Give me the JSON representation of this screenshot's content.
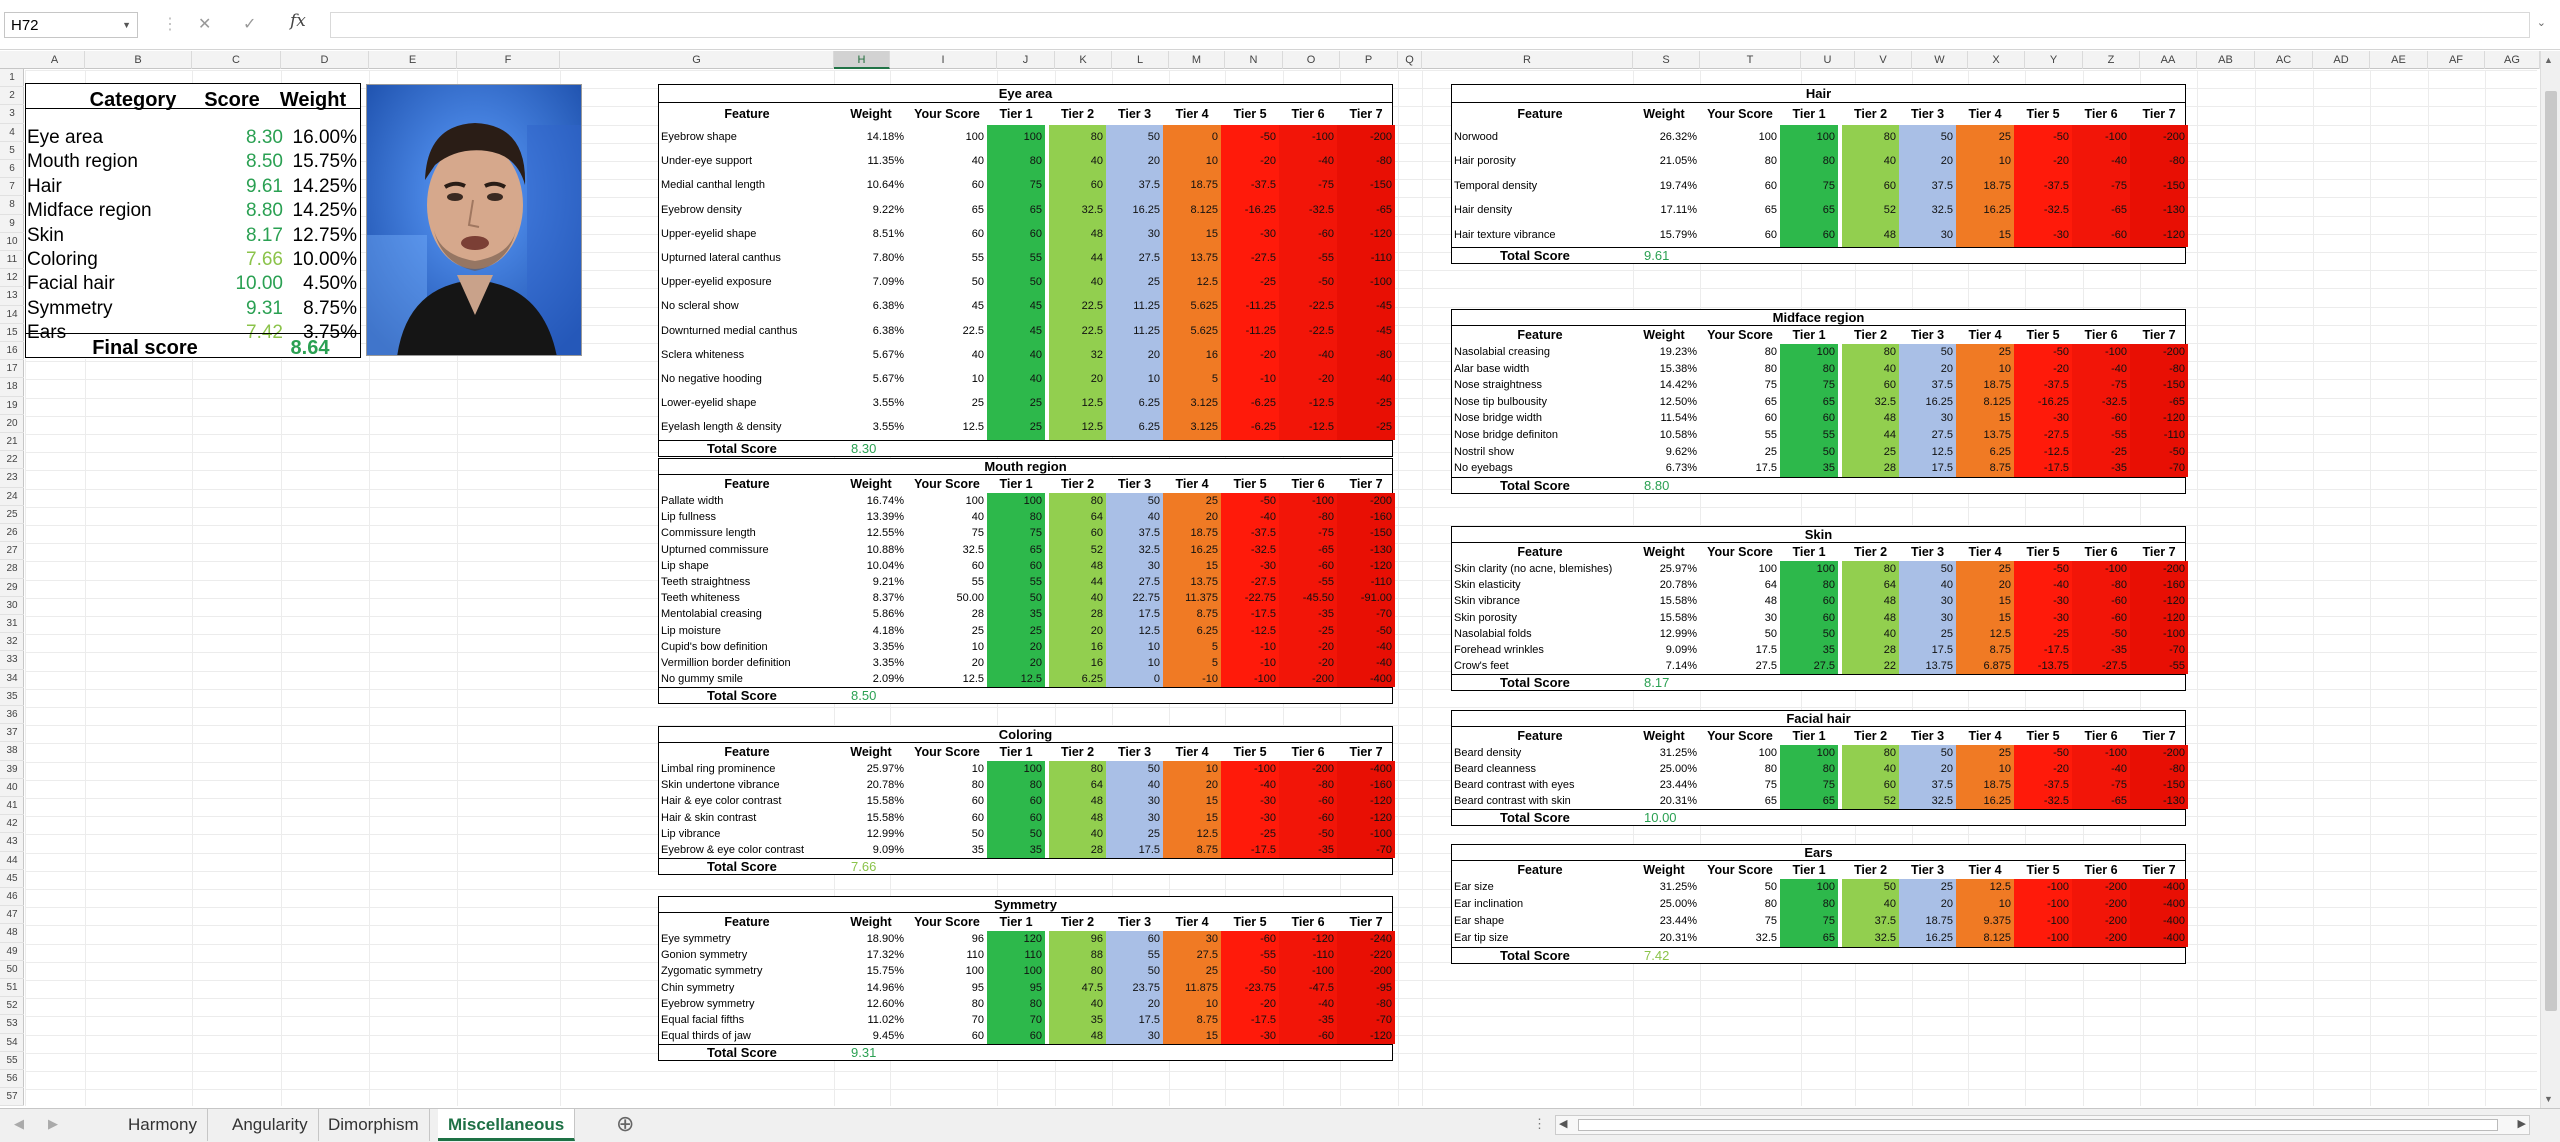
{
  "formula_bar": {
    "name_box": "H72",
    "cancel_icon": "✕",
    "enter_icon": "✓",
    "fx": "fx",
    "value": ""
  },
  "columns": [
    "A",
    "B",
    "C",
    "D",
    "E",
    "F",
    "G",
    "H",
    "I",
    "J",
    "K",
    "L",
    "M",
    "N",
    "O",
    "P",
    "Q",
    "R",
    "S",
    "T",
    "U",
    "V",
    "W",
    "X",
    "Y",
    "Z",
    "AA",
    "AB",
    "AC",
    "AD",
    "AE",
    "AF",
    "AG"
  ],
  "row_numbers": [
    "1",
    "2",
    "3",
    "4",
    "5",
    "6",
    "7",
    "8",
    "9",
    "10",
    "11",
    "12",
    "13",
    "14",
    "15",
    "16",
    "17",
    "18",
    "19",
    "20",
    "21",
    "22",
    "23",
    "24",
    "25",
    "26",
    "27",
    "28",
    "29",
    "30",
    "31",
    "32",
    "33",
    "34",
    "35",
    "36",
    "37",
    "38",
    "39",
    "40",
    "41",
    "42",
    "43",
    "44",
    "45",
    "46",
    "47",
    "48",
    "49",
    "50",
    "51",
    "52",
    "53",
    "54",
    "55",
    "56",
    "57"
  ],
  "summary": {
    "headers": [
      "Category",
      "Score",
      "Weight"
    ],
    "rows": [
      {
        "category": "Eye area",
        "score": "8.30",
        "weight": "16.00%"
      },
      {
        "category": "Mouth region",
        "score": "8.50",
        "weight": "15.75%"
      },
      {
        "category": "Hair",
        "score": "9.61",
        "weight": "14.25%"
      },
      {
        "category": "Midface region",
        "score": "8.80",
        "weight": "14.25%"
      },
      {
        "category": "Skin",
        "score": "8.17",
        "weight": "12.75%"
      },
      {
        "category": "Coloring",
        "score": "7.66",
        "weight": "10.00%"
      },
      {
        "category": "Facial hair",
        "score": "10.00",
        "weight": "4.50%"
      },
      {
        "category": "Symmetry",
        "score": "9.31",
        "weight": "8.75%"
      },
      {
        "category": "Ears",
        "score": "7.42",
        "weight": "3.75%"
      }
    ],
    "final_label": "Final score",
    "final_value": "8.64"
  },
  "table_headers": [
    "Feature",
    "Weight",
    "Your Score",
    "Tier 1",
    "Tier 2",
    "Tier 3",
    "Tier 4",
    "Tier 5",
    "Tier 6",
    "Tier 7"
  ],
  "total_label": "Total Score",
  "tier_colors": [
    "#2db84b",
    "#92cf4f",
    "#a9bfe6",
    "#f07a24",
    "#ff1a0a",
    "#f21508",
    "#e80f04"
  ],
  "tables": [
    {
      "title": "Eye area",
      "total": "8.30",
      "rows": [
        [
          "Eyebrow shape",
          "14.18%",
          "100",
          "100",
          "80",
          "50",
          "0",
          "-50",
          "-100",
          "-200"
        ],
        [
          "Under-eye support",
          "11.35%",
          "40",
          "80",
          "40",
          "20",
          "10",
          "-20",
          "-40",
          "-80"
        ],
        [
          "Medial canthal length",
          "10.64%",
          "60",
          "75",
          "60",
          "37.5",
          "18.75",
          "-37.5",
          "-75",
          "-150"
        ],
        [
          "Eyebrow density",
          "9.22%",
          "65",
          "65",
          "32.5",
          "16.25",
          "8.125",
          "-16.25",
          "-32.5",
          "-65"
        ],
        [
          "Upper-eyelid shape",
          "8.51%",
          "60",
          "60",
          "48",
          "30",
          "15",
          "-30",
          "-60",
          "-120"
        ],
        [
          "Upturned lateral canthus",
          "7.80%",
          "55",
          "55",
          "44",
          "27.5",
          "13.75",
          "-27.5",
          "-55",
          "-110"
        ],
        [
          "Upper-eyelid exposure",
          "7.09%",
          "50",
          "50",
          "40",
          "25",
          "12.5",
          "-25",
          "-50",
          "-100"
        ],
        [
          "No scleral show",
          "6.38%",
          "45",
          "45",
          "22.5",
          "11.25",
          "5.625",
          "-11.25",
          "-22.5",
          "-45"
        ],
        [
          "Downturned medial canthus",
          "6.38%",
          "22.5",
          "45",
          "22.5",
          "11.25",
          "5.625",
          "-11.25",
          "-22.5",
          "-45"
        ],
        [
          "Sclera whiteness",
          "5.67%",
          "40",
          "40",
          "32",
          "20",
          "16",
          "-20",
          "-40",
          "-80"
        ],
        [
          "No negative hooding",
          "5.67%",
          "10",
          "40",
          "20",
          "10",
          "5",
          "-10",
          "-20",
          "-40"
        ],
        [
          "Lower-eyelid shape",
          "3.55%",
          "25",
          "25",
          "12.5",
          "6.25",
          "3.125",
          "-6.25",
          "-12.5",
          "-25"
        ],
        [
          "Eyelash length & density",
          "3.55%",
          "12.5",
          "25",
          "12.5",
          "6.25",
          "3.125",
          "-6.25",
          "-12.5",
          "-25"
        ]
      ]
    },
    {
      "title": "Mouth region",
      "total": "8.50",
      "rows": [
        [
          "Pallate width",
          "16.74%",
          "100",
          "100",
          "80",
          "50",
          "25",
          "-50",
          "-100",
          "-200"
        ],
        [
          "Lip fullness",
          "13.39%",
          "40",
          "80",
          "64",
          "40",
          "20",
          "-40",
          "-80",
          "-160"
        ],
        [
          "Commissure length",
          "12.55%",
          "75",
          "75",
          "60",
          "37.5",
          "18.75",
          "-37.5",
          "-75",
          "-150"
        ],
        [
          "Upturned commissure",
          "10.88%",
          "32.5",
          "65",
          "52",
          "32.5",
          "16.25",
          "-32.5",
          "-65",
          "-130"
        ],
        [
          "Lip shape",
          "10.04%",
          "60",
          "60",
          "48",
          "30",
          "15",
          "-30",
          "-60",
          "-120"
        ],
        [
          "Teeth straightness",
          "9.21%",
          "55",
          "55",
          "44",
          "27.5",
          "13.75",
          "-27.5",
          "-55",
          "-110"
        ],
        [
          "Teeth whiteness",
          "8.37%",
          "50.00",
          "50",
          "40",
          "22.75",
          "11.375",
          "-22.75",
          "-45.50",
          "-91.00"
        ],
        [
          "Mentolabial creasing",
          "5.86%",
          "28",
          "35",
          "28",
          "17.5",
          "8.75",
          "-17.5",
          "-35",
          "-70"
        ],
        [
          "Lip moisture",
          "4.18%",
          "25",
          "25",
          "20",
          "12.5",
          "6.25",
          "-12.5",
          "-25",
          "-50"
        ],
        [
          "Cupid's bow definition",
          "3.35%",
          "10",
          "20",
          "16",
          "10",
          "5",
          "-10",
          "-20",
          "-40"
        ],
        [
          "Vermillion border definition",
          "3.35%",
          "20",
          "20",
          "16",
          "10",
          "5",
          "-10",
          "-20",
          "-40"
        ],
        [
          "No gummy smile",
          "2.09%",
          "12.5",
          "12.5",
          "6.25",
          "0",
          "-10",
          "-100",
          "-200",
          "-400"
        ]
      ]
    },
    {
      "title": "Coloring",
      "total": "7.66",
      "rows": [
        [
          "Limbal ring prominence",
          "25.97%",
          "10",
          "100",
          "80",
          "50",
          "10",
          "-100",
          "-200",
          "-400"
        ],
        [
          "Skin undertone vibrance",
          "20.78%",
          "80",
          "80",
          "64",
          "40",
          "20",
          "-40",
          "-80",
          "-160"
        ],
        [
          "Hair & eye color contrast",
          "15.58%",
          "60",
          "60",
          "48",
          "30",
          "15",
          "-30",
          "-60",
          "-120"
        ],
        [
          "Hair & skin contrast",
          "15.58%",
          "60",
          "60",
          "48",
          "30",
          "15",
          "-30",
          "-60",
          "-120"
        ],
        [
          "Lip vibrance",
          "12.99%",
          "50",
          "50",
          "40",
          "25",
          "12.5",
          "-25",
          "-50",
          "-100"
        ],
        [
          "Eyebrow & eye color contrast",
          "9.09%",
          "35",
          "35",
          "28",
          "17.5",
          "8.75",
          "-17.5",
          "-35",
          "-70"
        ]
      ]
    },
    {
      "title": "Symmetry",
      "total": "9.31",
      "rows": [
        [
          "Eye symmetry",
          "18.90%",
          "96",
          "120",
          "96",
          "60",
          "30",
          "-60",
          "-120",
          "-240"
        ],
        [
          "Gonion symmetry",
          "17.32%",
          "110",
          "110",
          "88",
          "55",
          "27.5",
          "-55",
          "-110",
          "-220"
        ],
        [
          "Zygomatic symmetry",
          "15.75%",
          "100",
          "100",
          "80",
          "50",
          "25",
          "-50",
          "-100",
          "-200"
        ],
        [
          "Chin symmetry",
          "14.96%",
          "95",
          "95",
          "47.5",
          "23.75",
          "11.875",
          "-23.75",
          "-47.5",
          "-95"
        ],
        [
          "Eyebrow symmetry",
          "12.60%",
          "80",
          "80",
          "40",
          "20",
          "10",
          "-20",
          "-40",
          "-80"
        ],
        [
          "Equal facial fifths",
          "11.02%",
          "70",
          "70",
          "35",
          "17.5",
          "8.75",
          "-17.5",
          "-35",
          "-70"
        ],
        [
          "Equal thirds of jaw",
          "9.45%",
          "60",
          "60",
          "48",
          "30",
          "15",
          "-30",
          "-60",
          "-120"
        ]
      ]
    },
    {
      "title": "Hair",
      "total": "9.61",
      "rows": [
        [
          "Norwood",
          "26.32%",
          "100",
          "100",
          "80",
          "50",
          "25",
          "-50",
          "-100",
          "-200"
        ],
        [
          "Hair porosity",
          "21.05%",
          "80",
          "80",
          "40",
          "20",
          "10",
          "-20",
          "-40",
          "-80"
        ],
        [
          "Temporal density",
          "19.74%",
          "60",
          "75",
          "60",
          "37.5",
          "18.75",
          "-37.5",
          "-75",
          "-150"
        ],
        [
          "Hair density",
          "17.11%",
          "65",
          "65",
          "52",
          "32.5",
          "16.25",
          "-32.5",
          "-65",
          "-130"
        ],
        [
          "Hair texture vibrance",
          "15.79%",
          "60",
          "60",
          "48",
          "30",
          "15",
          "-30",
          "-60",
          "-120"
        ]
      ]
    },
    {
      "title": "Midface region",
      "total": "8.80",
      "rows": [
        [
          "Nasolabial creasing",
          "19.23%",
          "80",
          "100",
          "80",
          "50",
          "25",
          "-50",
          "-100",
          "-200"
        ],
        [
          "Alar base width",
          "15.38%",
          "80",
          "80",
          "40",
          "20",
          "10",
          "-20",
          "-40",
          "-80"
        ],
        [
          "Nose straightness",
          "14.42%",
          "75",
          "75",
          "60",
          "37.5",
          "18.75",
          "-37.5",
          "-75",
          "-150"
        ],
        [
          "Nose tip bulbousity",
          "12.50%",
          "65",
          "65",
          "32.5",
          "16.25",
          "8.125",
          "-16.25",
          "-32.5",
          "-65"
        ],
        [
          "Nose bridge width",
          "11.54%",
          "60",
          "60",
          "48",
          "30",
          "15",
          "-30",
          "-60",
          "-120"
        ],
        [
          "Nose bridge definiton",
          "10.58%",
          "55",
          "55",
          "44",
          "27.5",
          "13.75",
          "-27.5",
          "-55",
          "-110"
        ],
        [
          "Nostril show",
          "9.62%",
          "25",
          "50",
          "25",
          "12.5",
          "6.25",
          "-12.5",
          "-25",
          "-50"
        ],
        [
          "No eyebags",
          "6.73%",
          "17.5",
          "35",
          "28",
          "17.5",
          "8.75",
          "-17.5",
          "-35",
          "-70"
        ]
      ]
    },
    {
      "title": "Skin",
      "total": "8.17",
      "rows": [
        [
          "Skin clarity (no acne, blemishes)",
          "25.97%",
          "100",
          "100",
          "80",
          "50",
          "25",
          "-50",
          "-100",
          "-200"
        ],
        [
          "Skin elasticity",
          "20.78%",
          "64",
          "80",
          "64",
          "40",
          "20",
          "-40",
          "-80",
          "-160"
        ],
        [
          "Skin vibrance",
          "15.58%",
          "48",
          "60",
          "48",
          "30",
          "15",
          "-30",
          "-60",
          "-120"
        ],
        [
          "Skin porosity",
          "15.58%",
          "30",
          "60",
          "48",
          "30",
          "15",
          "-30",
          "-60",
          "-120"
        ],
        [
          "Nasolabial folds",
          "12.99%",
          "50",
          "50",
          "40",
          "25",
          "12.5",
          "-25",
          "-50",
          "-100"
        ],
        [
          "Forehead wrinkles",
          "9.09%",
          "17.5",
          "35",
          "28",
          "17.5",
          "8.75",
          "-17.5",
          "-35",
          "-70"
        ],
        [
          "Crow's feet",
          "7.14%",
          "27.5",
          "27.5",
          "22",
          "13.75",
          "6.875",
          "-13.75",
          "-27.5",
          "-55"
        ]
      ]
    },
    {
      "title": "Facial hair",
      "total": "10.00",
      "rows": [
        [
          "Beard density",
          "31.25%",
          "100",
          "100",
          "80",
          "50",
          "25",
          "-50",
          "-100",
          "-200"
        ],
        [
          "Beard cleanness",
          "25.00%",
          "80",
          "80",
          "40",
          "20",
          "10",
          "-20",
          "-40",
          "-80"
        ],
        [
          "Beard contrast with eyes",
          "23.44%",
          "75",
          "75",
          "60",
          "37.5",
          "18.75",
          "-37.5",
          "-75",
          "-150"
        ],
        [
          "Beard contrast with skin",
          "20.31%",
          "65",
          "65",
          "52",
          "32.5",
          "16.25",
          "-32.5",
          "-65",
          "-130"
        ]
      ]
    },
    {
      "title": "Ears",
      "total": "7.42",
      "rows": [
        [
          "Ear size",
          "31.25%",
          "50",
          "100",
          "50",
          "25",
          "12.5",
          "-100",
          "-200",
          "-400"
        ],
        [
          "Ear inclination",
          "25.00%",
          "80",
          "80",
          "40",
          "20",
          "10",
          "-100",
          "-200",
          "-400"
        ],
        [
          "Ear shape",
          "23.44%",
          "75",
          "75",
          "37.5",
          "18.75",
          "9.375",
          "-100",
          "-200",
          "-400"
        ],
        [
          "Ear tip size",
          "20.31%",
          "32.5",
          "65",
          "32.5",
          "16.25",
          "8.125",
          "-100",
          "-200",
          "-400"
        ]
      ]
    }
  ],
  "sheet_tabs": [
    "Harmony",
    "Angularity",
    "Dimorphism",
    "Miscellaneous"
  ],
  "active_tab": "Miscellaneous",
  "add_sheet_icon": "⊕"
}
